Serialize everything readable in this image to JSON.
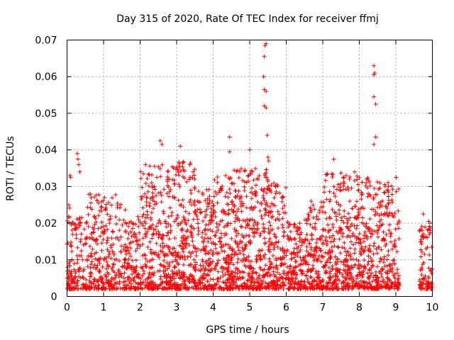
{
  "chart_data": {
    "type": "scatter",
    "title": "Day 315 of 2020, Rate Of TEC Index for receiver ffmj",
    "xlabel": "GPS time / hours",
    "ylabel": "ROTI / TECUs",
    "xlim": [
      0,
      10
    ],
    "ylim": [
      0,
      0.07
    ],
    "xticks": [
      "0",
      "1",
      "2",
      "3",
      "4",
      "5",
      "6",
      "7",
      "8",
      "9",
      "10"
    ],
    "yticks": [
      "0",
      "0.01",
      "0.02",
      "0.03",
      "0.04",
      "0.05",
      "0.06",
      "0.07"
    ],
    "grid": true,
    "marker": "+",
    "color": "#ff0000",
    "series": [
      {
        "name": "ROTI",
        "notable_points": [
          {
            "x": 0.05,
            "y": 0.025
          },
          {
            "x": 0.08,
            "y": 0.033
          },
          {
            "x": 0.1,
            "y": 0.0325
          },
          {
            "x": 0.28,
            "y": 0.039
          },
          {
            "x": 0.3,
            "y": 0.0375
          },
          {
            "x": 0.32,
            "y": 0.036
          },
          {
            "x": 0.35,
            "y": 0.034
          },
          {
            "x": 2.15,
            "y": 0.036
          },
          {
            "x": 2.55,
            "y": 0.0425
          },
          {
            "x": 2.6,
            "y": 0.0415
          },
          {
            "x": 3.1,
            "y": 0.041
          },
          {
            "x": 4.45,
            "y": 0.0435
          },
          {
            "x": 4.45,
            "y": 0.0395
          },
          {
            "x": 5.0,
            "y": 0.04
          },
          {
            "x": 5.42,
            "y": 0.0685
          },
          {
            "x": 5.45,
            "y": 0.069
          },
          {
            "x": 5.4,
            "y": 0.0655
          },
          {
            "x": 5.38,
            "y": 0.06
          },
          {
            "x": 5.4,
            "y": 0.0565
          },
          {
            "x": 5.45,
            "y": 0.056
          },
          {
            "x": 5.4,
            "y": 0.052
          },
          {
            "x": 5.45,
            "y": 0.0515
          },
          {
            "x": 5.48,
            "y": 0.044
          },
          {
            "x": 5.5,
            "y": 0.038
          },
          {
            "x": 5.52,
            "y": 0.037
          },
          {
            "x": 7.3,
            "y": 0.0375
          },
          {
            "x": 8.4,
            "y": 0.063
          },
          {
            "x": 8.42,
            "y": 0.061
          },
          {
            "x": 8.4,
            "y": 0.0605
          },
          {
            "x": 8.4,
            "y": 0.0545
          },
          {
            "x": 8.45,
            "y": 0.0525
          },
          {
            "x": 8.45,
            "y": 0.0435
          },
          {
            "x": 8.4,
            "y": 0.0415
          },
          {
            "x": 9.75,
            "y": 0.0225
          },
          {
            "x": 9.9,
            "y": 0.0205
          }
        ],
        "segments": [
          {
            "x_start": 0.0,
            "x_end": 0.15,
            "y_min": 0.002,
            "y_max": 0.025,
            "density": 55
          },
          {
            "x_start": 0.15,
            "x_end": 0.5,
            "y_min": 0.002,
            "y_max": 0.022,
            "density": 80
          },
          {
            "x_start": 0.5,
            "x_end": 0.9,
            "y_min": 0.002,
            "y_max": 0.029,
            "density": 120
          },
          {
            "x_start": 0.9,
            "x_end": 1.6,
            "y_min": 0.002,
            "y_max": 0.028,
            "density": 180
          },
          {
            "x_start": 1.6,
            "x_end": 2.0,
            "y_min": 0.002,
            "y_max": 0.022,
            "density": 110
          },
          {
            "x_start": 2.0,
            "x_end": 2.5,
            "y_min": 0.002,
            "y_max": 0.036,
            "density": 170
          },
          {
            "x_start": 2.5,
            "x_end": 3.0,
            "y_min": 0.002,
            "y_max": 0.036,
            "density": 180
          },
          {
            "x_start": 3.0,
            "x_end": 3.5,
            "y_min": 0.002,
            "y_max": 0.037,
            "density": 190
          },
          {
            "x_start": 3.5,
            "x_end": 4.0,
            "y_min": 0.002,
            "y_max": 0.03,
            "density": 180
          },
          {
            "x_start": 4.0,
            "x_end": 4.5,
            "y_min": 0.002,
            "y_max": 0.033,
            "density": 180
          },
          {
            "x_start": 4.5,
            "x_end": 5.0,
            "y_min": 0.002,
            "y_max": 0.035,
            "density": 190
          },
          {
            "x_start": 5.0,
            "x_end": 5.5,
            "y_min": 0.002,
            "y_max": 0.035,
            "density": 190
          },
          {
            "x_start": 5.5,
            "x_end": 6.0,
            "y_min": 0.002,
            "y_max": 0.031,
            "density": 180
          },
          {
            "x_start": 6.0,
            "x_end": 6.5,
            "y_min": 0.002,
            "y_max": 0.021,
            "density": 150
          },
          {
            "x_start": 6.5,
            "x_end": 7.0,
            "y_min": 0.002,
            "y_max": 0.026,
            "density": 160
          },
          {
            "x_start": 7.0,
            "x_end": 7.5,
            "y_min": 0.002,
            "y_max": 0.034,
            "density": 170
          },
          {
            "x_start": 7.5,
            "x_end": 8.0,
            "y_min": 0.002,
            "y_max": 0.034,
            "density": 180
          },
          {
            "x_start": 8.0,
            "x_end": 8.5,
            "y_min": 0.002,
            "y_max": 0.033,
            "density": 180
          },
          {
            "x_start": 8.5,
            "x_end": 9.1,
            "y_min": 0.002,
            "y_max": 0.033,
            "density": 190
          },
          {
            "x_start": 9.65,
            "x_end": 10.0,
            "y_min": 0.002,
            "y_max": 0.02,
            "density": 90
          }
        ]
      }
    ]
  }
}
